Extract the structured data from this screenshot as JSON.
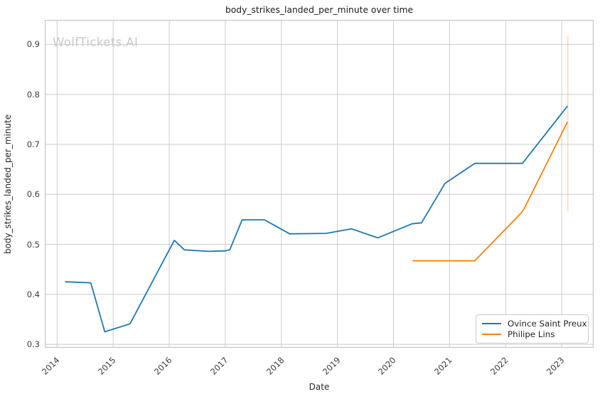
{
  "figure": {
    "watermark": "WolfTickets.AI"
  },
  "colors": {
    "grid": "#cccccc",
    "spine": "#c6c6c6",
    "watermark": "#c9c9ce",
    "series_blue": "#1f77b4",
    "series_orange": "#ff7f0e"
  },
  "chart_data": {
    "type": "line",
    "title": "body_strikes_landed_per_minute over time",
    "xlabel": "Date",
    "ylabel": "body_strikes_landed_per_minute",
    "xlim": [
      2013.78,
      2023.57
    ],
    "ylim": [
      0.293,
      0.949
    ],
    "x_ticks": [
      2014,
      2015,
      2016,
      2017,
      2018,
      2019,
      2020,
      2021,
      2022,
      2023
    ],
    "y_ticks": [
      0.3,
      0.4,
      0.5,
      0.6,
      0.7,
      0.8,
      0.9
    ],
    "grid": true,
    "legend_position": "lower right",
    "series": [
      {
        "name": "Ovince Saint Preux",
        "color": "#1f77b4",
        "x": [
          2014.15,
          2014.6,
          2014.85,
          2015.3,
          2016.09,
          2016.27,
          2016.7,
          2017.0,
          2017.08,
          2017.3,
          2017.7,
          2018.15,
          2018.8,
          2019.25,
          2019.72,
          2020.33,
          2020.5,
          2020.92,
          2021.45,
          2022.3,
          2023.1
        ],
        "y": [
          0.425,
          0.423,
          0.325,
          0.341,
          0.508,
          0.489,
          0.486,
          0.487,
          0.489,
          0.549,
          0.549,
          0.521,
          0.522,
          0.531,
          0.513,
          0.541,
          0.543,
          0.622,
          0.662,
          0.662,
          0.776
        ]
      },
      {
        "name": "Philipe Lins",
        "color": "#ff7f0e",
        "x": [
          2020.35,
          2021.45,
          2022.28,
          2022.33,
          2023.1
        ],
        "y": [
          0.467,
          0.467,
          0.563,
          0.571,
          0.744
        ]
      }
    ],
    "error_bar": {
      "series": "Philipe Lins",
      "x": 2023.11,
      "y_low": 0.566,
      "y_high": 0.917,
      "color": "#ff7f0e",
      "opacity": 0.3
    }
  }
}
